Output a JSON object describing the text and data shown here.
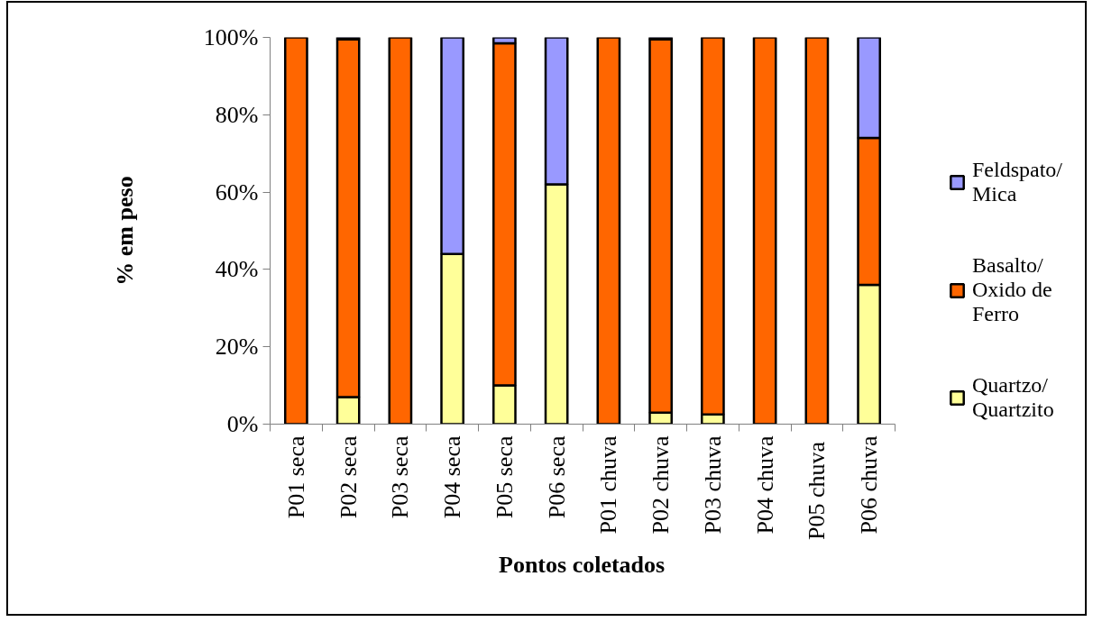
{
  "chart_data": {
    "type": "bar",
    "stacked": true,
    "xlabel": "Pontos coletados",
    "ylabel": "% em peso",
    "legend": "right",
    "categories": [
      "P01 seca",
      "P02 seca",
      "P03 seca",
      "P04 seca",
      "P05 seca",
      "P06 seca",
      "P01 chuva",
      "P02 chuva",
      "P03 chuva",
      "P04 chuva",
      "P05  chuva",
      "P06 chuva"
    ],
    "series": [
      {
        "name": "Quartzo/ Quartzito",
        "color": "#ffff99",
        "values": [
          0,
          7,
          0,
          44,
          10,
          62,
          0,
          3,
          2.5,
          0,
          0,
          36
        ]
      },
      {
        "name": "Basalto/ Oxido de Ferro",
        "color": "#ff6600",
        "values": [
          100,
          92.5,
          100,
          0,
          88.5,
          0,
          100,
          96.5,
          97.5,
          100,
          100,
          38
        ]
      },
      {
        "name": "Feldspato/ Mica",
        "color": "#9999ff",
        "values": [
          0,
          0.5,
          0,
          56,
          1.5,
          38,
          0,
          0.5,
          0,
          0,
          0,
          26
        ]
      }
    ],
    "ylim": [
      0,
      100
    ],
    "yticks": [
      {
        "value": 0,
        "label": "0%"
      },
      {
        "value": 20,
        "label": "20%"
      },
      {
        "value": 40,
        "label": "40%"
      },
      {
        "value": 60,
        "label": "60%"
      },
      {
        "value": 80,
        "label": "80%"
      },
      {
        "value": 100,
        "label": "100%"
      }
    ]
  }
}
